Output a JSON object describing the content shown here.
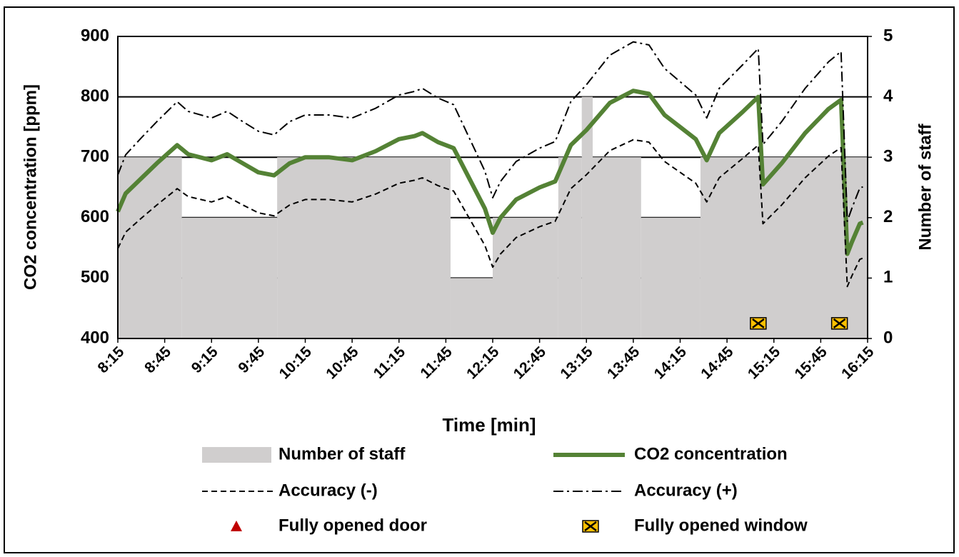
{
  "chart_data": {
    "type": "line",
    "xlabel": "Time [min]",
    "ylabel": "CO2 concentration [ppm]",
    "y2label": "Number of staff",
    "xlim": [
      495,
      975
    ],
    "xticks": [
      {
        "value": 495,
        "label": "8:15"
      },
      {
        "value": 525,
        "label": "8:45"
      },
      {
        "value": 555,
        "label": "9:15"
      },
      {
        "value": 585,
        "label": "9:45"
      },
      {
        "value": 615,
        "label": "10:15"
      },
      {
        "value": 645,
        "label": "10:45"
      },
      {
        "value": 675,
        "label": "11:15"
      },
      {
        "value": 705,
        "label": "11:45"
      },
      {
        "value": 735,
        "label": "12:15"
      },
      {
        "value": 765,
        "label": "12:45"
      },
      {
        "value": 795,
        "label": "13:15"
      },
      {
        "value": 825,
        "label": "13:45"
      },
      {
        "value": 855,
        "label": "14:15"
      },
      {
        "value": 885,
        "label": "14:45"
      },
      {
        "value": 915,
        "label": "15:15"
      },
      {
        "value": 945,
        "label": "15:45"
      },
      {
        "value": 975,
        "label": "16:15"
      }
    ],
    "ylim": [
      400,
      900
    ],
    "yticks": [
      400,
      500,
      600,
      700,
      800,
      900
    ],
    "y2lim": [
      0,
      5
    ],
    "y2ticks": [
      0,
      1,
      2,
      3,
      4,
      5
    ],
    "grid": true,
    "series": [
      {
        "name": "Number of staff",
        "kind": "step-area",
        "axis": "y2",
        "color": "#d0cece",
        "x": [
          495,
          536,
          597,
          708,
          735,
          777,
          792,
          799,
          830,
          868
        ],
        "values": [
          3,
          2,
          3,
          1,
          2,
          3,
          4,
          3,
          2,
          3
        ]
      },
      {
        "name": "CO2 concentration",
        "kind": "line",
        "color": "#548235",
        "width": 6,
        "x": [
          495,
          500,
          510,
          520,
          533,
          540,
          555,
          565,
          575,
          585,
          595,
          605,
          615,
          630,
          645,
          660,
          675,
          685,
          690,
          700,
          710,
          720,
          730,
          735,
          740,
          750,
          765,
          775,
          785,
          795,
          810,
          825,
          835,
          845,
          855,
          865,
          872,
          880,
          895,
          905,
          908,
          920,
          935,
          950,
          958,
          962,
          965,
          970,
          972
        ],
        "values": [
          610,
          640,
          665,
          690,
          720,
          705,
          695,
          705,
          690,
          675,
          670,
          690,
          700,
          700,
          695,
          710,
          730,
          735,
          740,
          725,
          715,
          665,
          615,
          575,
          600,
          630,
          650,
          660,
          720,
          745,
          790,
          810,
          805,
          770,
          750,
          730,
          695,
          740,
          775,
          800,
          655,
          690,
          740,
          780,
          795,
          540,
          560,
          590,
          592
        ]
      },
      {
        "name": "Accuracy (-)",
        "kind": "line",
        "color": "#000000",
        "width": 2,
        "dash": "8 5",
        "x": [
          495,
          500,
          510,
          520,
          533,
          540,
          555,
          565,
          575,
          585,
          595,
          605,
          615,
          630,
          645,
          660,
          675,
          685,
          690,
          700,
          710,
          720,
          730,
          735,
          740,
          750,
          765,
          775,
          785,
          795,
          810,
          825,
          835,
          845,
          855,
          865,
          872,
          880,
          895,
          905,
          908,
          920,
          935,
          950,
          958,
          962,
          965,
          970,
          972
        ],
        "values": [
          549,
          576,
          599,
          621,
          648,
          635,
          626,
          635,
          621,
          608,
          603,
          621,
          630,
          630,
          626,
          639,
          657,
          662,
          666,
          653,
          644,
          599,
          554,
          518,
          540,
          567,
          585,
          594,
          648,
          671,
          711,
          729,
          725,
          693,
          675,
          657,
          626,
          666,
          698,
          720,
          590,
          621,
          666,
          702,
          716,
          486,
          504,
          531,
          533
        ]
      },
      {
        "name": "Accuracy (+)",
        "kind": "line",
        "color": "#000000",
        "width": 2,
        "dash": "14 5 3 5",
        "x": [
          495,
          500,
          510,
          520,
          533,
          540,
          555,
          565,
          575,
          585,
          595,
          605,
          615,
          630,
          645,
          660,
          675,
          685,
          690,
          700,
          710,
          720,
          730,
          735,
          740,
          750,
          765,
          775,
          785,
          795,
          810,
          825,
          835,
          845,
          855,
          865,
          872,
          880,
          895,
          905,
          908,
          920,
          935,
          950,
          958,
          962,
          965,
          970,
          972
        ],
        "values": [
          671,
          704,
          732,
          759,
          792,
          776,
          765,
          776,
          759,
          743,
          737,
          759,
          770,
          770,
          765,
          781,
          803,
          809,
          814,
          798,
          787,
          732,
          677,
          633,
          660,
          693,
          715,
          726,
          792,
          820,
          869,
          891,
          886,
          847,
          825,
          803,
          765,
          814,
          853,
          880,
          721,
          759,
          814,
          858,
          875,
          594,
          616,
          649,
          651
        ]
      },
      {
        "name": "Fully opened door",
        "kind": "triangle",
        "color": "#c00000",
        "x": [],
        "values": []
      },
      {
        "name": "Fully opened window",
        "kind": "window",
        "color": "#ffc000",
        "x": [
          905,
          957
        ],
        "values": [
          425,
          425
        ]
      }
    ]
  }
}
